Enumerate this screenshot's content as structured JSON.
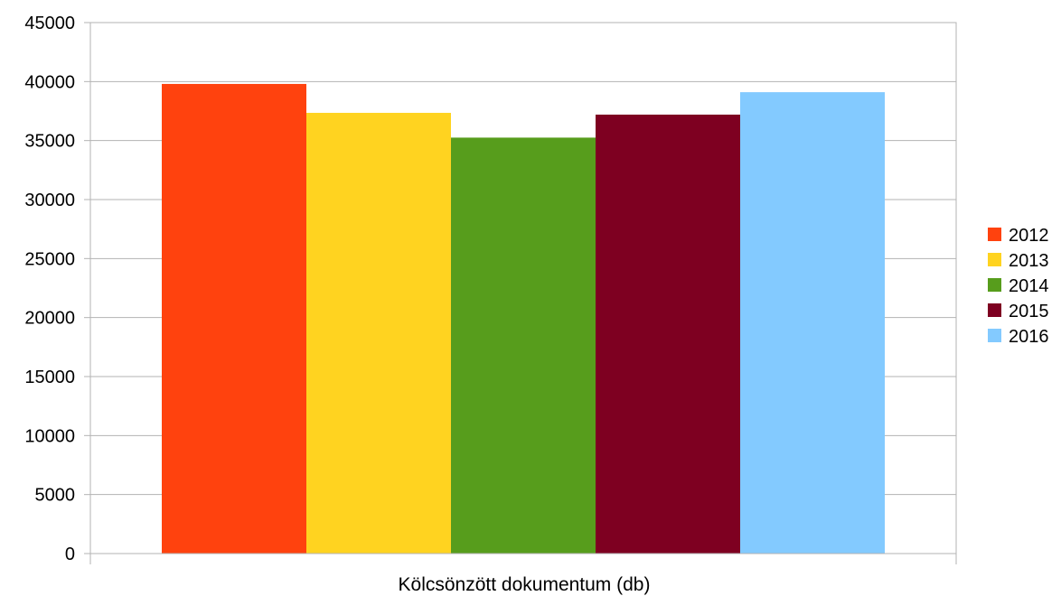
{
  "chart_data": {
    "type": "bar",
    "categories": [
      "Kölcsönzött dokumentum (db)"
    ],
    "series": [
      {
        "name": "2012",
        "color": "#ff420e",
        "values": [
          39800
        ]
      },
      {
        "name": "2013",
        "color": "#ffd320",
        "values": [
          37350
        ]
      },
      {
        "name": "2014",
        "color": "#579d1c",
        "values": [
          35250
        ]
      },
      {
        "name": "2015",
        "color": "#7e0021",
        "values": [
          37200
        ]
      },
      {
        "name": "2016",
        "color": "#83caff",
        "values": [
          39100
        ]
      }
    ],
    "title": "",
    "xlabel": "",
    "ylabel": "",
    "ylim": [
      0,
      45000
    ],
    "yticks": [
      0,
      5000,
      10000,
      15000,
      20000,
      25000,
      30000,
      35000,
      40000,
      45000
    ],
    "grid": true,
    "legend": "right"
  }
}
